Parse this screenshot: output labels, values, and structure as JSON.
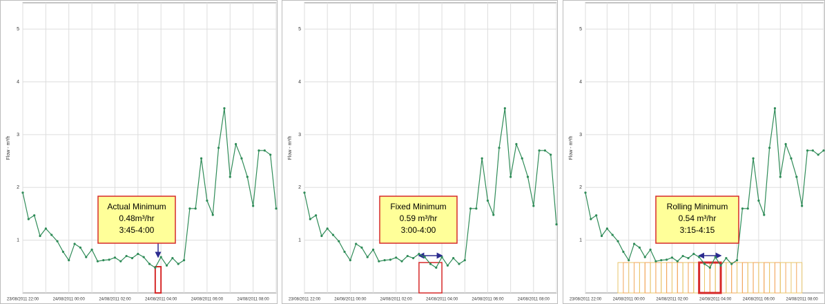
{
  "chart_data": [
    {
      "type": "line",
      "y_label": "Flow - m³/h",
      "categories": [
        "23/08/2011 22:00",
        null,
        null,
        null,
        null,
        null,
        null,
        null,
        "24/08/2011 00:00",
        null,
        null,
        null,
        null,
        null,
        null,
        null,
        "24/08/2011 02:00",
        null,
        null,
        null,
        null,
        null,
        null,
        null,
        "24/08/2011 04:00",
        null,
        null,
        null,
        null,
        null,
        null,
        null,
        "24/08/2011 06:00",
        null,
        null,
        null,
        null,
        null,
        null,
        null,
        "24/08/2011 08:00",
        null,
        null,
        null,
        null
      ],
      "series": [
        {
          "color": "#2e8b57",
          "values": [
            1.9,
            1.4,
            1.47,
            1.08,
            1.22,
            1.1,
            0.98,
            0.78,
            0.62,
            0.93,
            0.86,
            0.68,
            0.82,
            0.6,
            0.62,
            0.63,
            0.67,
            0.6,
            0.7,
            0.66,
            0.74,
            0.68,
            0.55,
            0.48,
            0.68,
            0.52,
            0.66,
            0.55,
            0.62,
            1.6,
            1.6,
            2.55,
            1.75,
            1.48,
            2.75,
            3.5,
            2.2,
            2.82,
            2.55,
            2.2,
            1.65,
            2.7,
            2.7,
            2.62,
            1.6
          ]
        }
      ],
      "ylim": [
        0,
        5.5
      ],
      "yticks": [
        1,
        2,
        3,
        4,
        5
      ],
      "grid": true,
      "annotation": [
        "Actual Minimum",
        "0.48m³/hr",
        "3:45-4:00"
      ]
    },
    {
      "type": "line",
      "y_label": "Flow - m³/h",
      "categories": [
        "23/08/2011 22:00",
        null,
        null,
        null,
        null,
        null,
        null,
        null,
        "24/08/2011 00:00",
        null,
        null,
        null,
        null,
        null,
        null,
        null,
        "24/08/2011 02:00",
        null,
        null,
        null,
        null,
        null,
        null,
        null,
        "24/08/2011 04:00",
        null,
        null,
        null,
        null,
        null,
        null,
        null,
        "24/08/2011 06:00",
        null,
        null,
        null,
        null,
        null,
        null,
        null,
        "24/08/2011 08:00",
        null,
        null,
        null,
        null
      ],
      "series": [
        {
          "color": "#2e8b57",
          "values": [
            1.9,
            1.4,
            1.47,
            1.08,
            1.22,
            1.1,
            0.98,
            0.78,
            0.62,
            0.93,
            0.86,
            0.68,
            0.82,
            0.6,
            0.62,
            0.63,
            0.67,
            0.6,
            0.7,
            0.66,
            0.74,
            0.68,
            0.55,
            0.48,
            0.68,
            0.52,
            0.66,
            0.55,
            0.62,
            1.6,
            1.6,
            2.55,
            1.75,
            1.48,
            2.75,
            3.5,
            2.2,
            2.82,
            2.55,
            2.2,
            1.65,
            2.7,
            2.7,
            2.62,
            1.3
          ]
        }
      ],
      "ylim": [
        0,
        5.5
      ],
      "yticks": [
        1,
        2,
        3,
        4,
        5
      ],
      "grid": true,
      "annotation": [
        "Fixed Minimum",
        "0.59 m³/hr",
        "3:00-4:00"
      ]
    },
    {
      "type": "line",
      "y_label": "Flow - m³/h",
      "categories": [
        "23/08/2011 22:00",
        null,
        null,
        null,
        null,
        null,
        null,
        null,
        "24/08/2011 00:00",
        null,
        null,
        null,
        null,
        null,
        null,
        null,
        "24/08/2011 02:00",
        null,
        null,
        null,
        null,
        null,
        null,
        null,
        "24/08/2011 04:00",
        null,
        null,
        null,
        null,
        null,
        null,
        null,
        "24/08/2011 06:00",
        null,
        null,
        null,
        null,
        null,
        null,
        null,
        "24/08/2011 08:00",
        null,
        null,
        null,
        null
      ],
      "series": [
        {
          "color": "#2e8b57",
          "values": [
            1.9,
            1.4,
            1.47,
            1.08,
            1.22,
            1.1,
            0.98,
            0.78,
            0.62,
            0.93,
            0.86,
            0.68,
            0.82,
            0.6,
            0.62,
            0.63,
            0.67,
            0.6,
            0.7,
            0.66,
            0.74,
            0.68,
            0.55,
            0.48,
            0.68,
            0.52,
            0.66,
            0.55,
            0.62,
            1.6,
            1.6,
            2.55,
            1.75,
            1.48,
            2.75,
            3.5,
            2.2,
            2.82,
            2.55,
            2.2,
            1.65,
            2.7,
            2.7,
            2.62,
            2.7
          ]
        }
      ],
      "ylim": [
        0,
        5.5
      ],
      "yticks": [
        1,
        2,
        3,
        4,
        5
      ],
      "grid": true,
      "annotation": [
        "Rolling Minimum",
        "0.54 m³/hr",
        "3:15-4:15"
      ]
    }
  ]
}
